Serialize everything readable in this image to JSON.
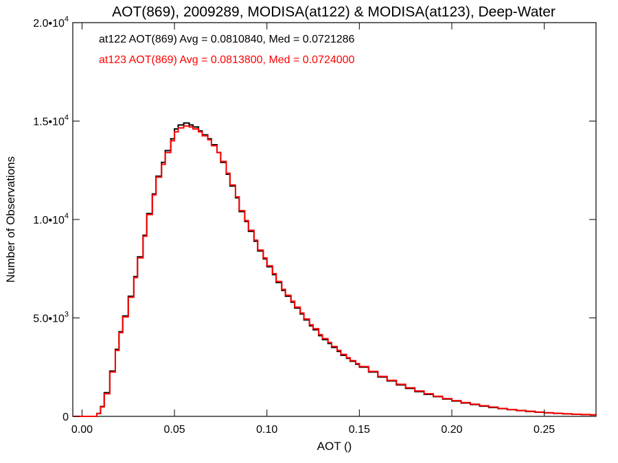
{
  "chart_data": {
    "type": "line",
    "title": "AOT(869), 2009289, MODISA(at122) & MODISA(at123), Deep-Water",
    "xlabel": "AOT ()",
    "ylabel": "Number of Observations",
    "xlim": [
      -0.005,
      0.278
    ],
    "ylim": [
      0,
      20000
    ],
    "x_ticks": [
      {
        "value": 0.0,
        "label": "0.00"
      },
      {
        "value": 0.05,
        "label": "0.05"
      },
      {
        "value": 0.1,
        "label": "0.10"
      },
      {
        "value": 0.15,
        "label": "0.15"
      },
      {
        "value": 0.2,
        "label": "0.20"
      },
      {
        "value": 0.25,
        "label": "0.25"
      }
    ],
    "y_ticks": [
      {
        "value": 0,
        "mantissa": "0",
        "exponent": ""
      },
      {
        "value": 5000,
        "mantissa": "5.0•10",
        "exponent": "3"
      },
      {
        "value": 10000,
        "mantissa": "1.0•10",
        "exponent": "4"
      },
      {
        "value": 15000,
        "mantissa": "1.5•10",
        "exponent": "4"
      },
      {
        "value": 20000,
        "mantissa": "2.0•10",
        "exponent": "4"
      }
    ],
    "grid": false,
    "legend_position": "top-left",
    "x": [
      -0.005,
      0.0,
      0.005,
      0.008,
      0.01,
      0.012,
      0.015,
      0.018,
      0.02,
      0.022,
      0.025,
      0.028,
      0.03,
      0.033,
      0.035,
      0.038,
      0.04,
      0.043,
      0.045,
      0.048,
      0.05,
      0.052,
      0.055,
      0.058,
      0.06,
      0.063,
      0.065,
      0.068,
      0.07,
      0.073,
      0.075,
      0.078,
      0.08,
      0.083,
      0.085,
      0.088,
      0.09,
      0.093,
      0.095,
      0.098,
      0.1,
      0.103,
      0.105,
      0.108,
      0.11,
      0.113,
      0.115,
      0.118,
      0.12,
      0.123,
      0.125,
      0.128,
      0.13,
      0.133,
      0.135,
      0.138,
      0.14,
      0.143,
      0.145,
      0.148,
      0.15,
      0.155,
      0.16,
      0.165,
      0.17,
      0.175,
      0.18,
      0.185,
      0.19,
      0.195,
      0.2,
      0.205,
      0.21,
      0.215,
      0.22,
      0.225,
      0.23,
      0.235,
      0.24,
      0.245,
      0.25,
      0.255,
      0.26,
      0.265,
      0.27,
      0.275,
      0.278
    ],
    "series": [
      {
        "name": "at122",
        "color": "#000000",
        "legend": "at122 AOT(869) Avg = 0.0810840, Med = 0.0721286",
        "values": [
          0,
          0,
          0,
          150,
          500,
          1200,
          2300,
          3400,
          4300,
          5100,
          6100,
          7100,
          8100,
          9200,
          10300,
          11300,
          12200,
          12900,
          13500,
          14100,
          14600,
          14800,
          14900,
          14800,
          14700,
          14500,
          14300,
          14100,
          13800,
          13400,
          12900,
          12300,
          11700,
          11100,
          10400,
          9900,
          9400,
          8900,
          8400,
          8000,
          7600,
          7200,
          6800,
          6400,
          6100,
          5800,
          5500,
          5200,
          4900,
          4600,
          4400,
          4100,
          3900,
          3700,
          3500,
          3300,
          3100,
          2950,
          2800,
          2650,
          2500,
          2250,
          2000,
          1800,
          1600,
          1420,
          1260,
          1120,
          1000,
          880,
          780,
          680,
          600,
          520,
          450,
          390,
          340,
          290,
          250,
          210,
          180,
          150,
          125,
          105,
          90,
          75,
          70
        ]
      },
      {
        "name": "at123",
        "color": "#ff0000",
        "legend": "at123 AOT(869) Avg = 0.0813800, Med = 0.0724000",
        "values": [
          0,
          0,
          0,
          140,
          480,
          1150,
          2250,
          3350,
          4250,
          5050,
          6050,
          7050,
          8050,
          9150,
          10250,
          11250,
          12150,
          12800,
          13400,
          14000,
          14450,
          14650,
          14750,
          14700,
          14600,
          14450,
          14250,
          14050,
          13750,
          13400,
          12950,
          12350,
          11750,
          11150,
          10450,
          9950,
          9450,
          8950,
          8450,
          8050,
          7650,
          7250,
          6850,
          6450,
          6150,
          5850,
          5550,
          5250,
          4950,
          4650,
          4450,
          4150,
          3950,
          3750,
          3550,
          3350,
          3150,
          2980,
          2830,
          2680,
          2530,
          2280,
          2030,
          1830,
          1630,
          1450,
          1290,
          1150,
          1020,
          900,
          800,
          700,
          620,
          540,
          470,
          400,
          350,
          300,
          260,
          220,
          185,
          155,
          130,
          110,
          92,
          78,
          72
        ]
      }
    ]
  }
}
